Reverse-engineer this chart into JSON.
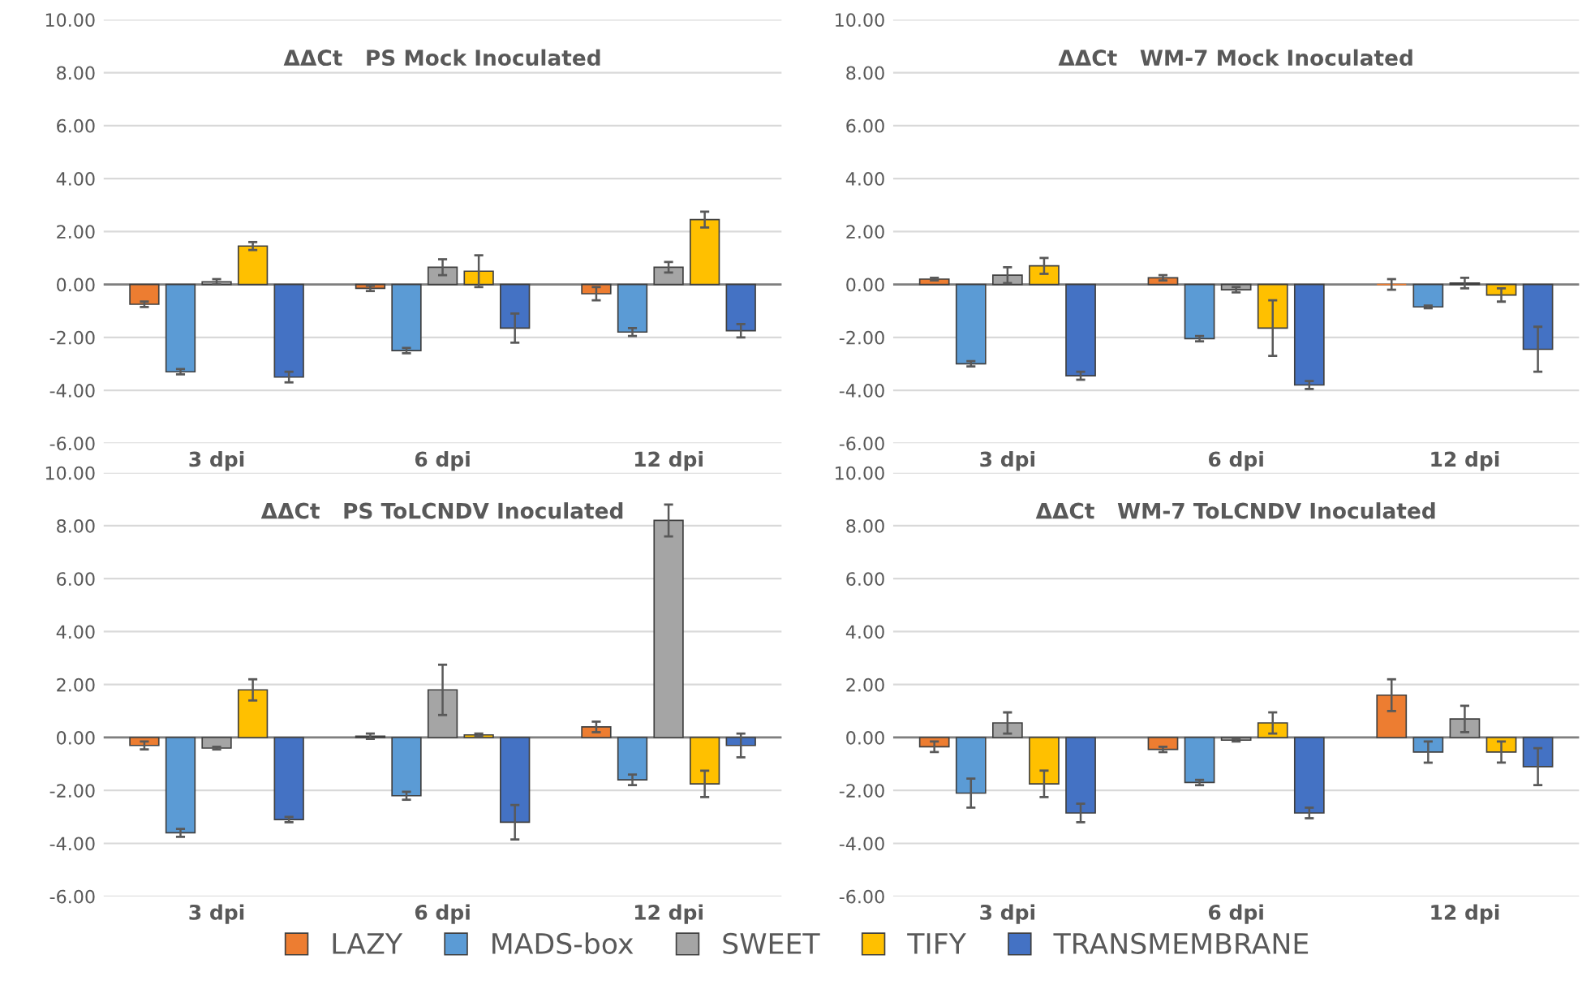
{
  "chart_data": [
    {
      "type": "bar",
      "title": "ΔΔCt   PS Mock Inoculated",
      "categories": [
        "3 dpi",
        "6 dpi",
        "12 dpi"
      ],
      "ylim": [
        -6,
        10
      ],
      "yticks": [
        {
          "value": -6,
          "label": "-6.00"
        },
        {
          "value": -4,
          "label": "-4.00"
        },
        {
          "value": -2,
          "label": "-2.00"
        },
        {
          "value": 0,
          "label": "0.00"
        },
        {
          "value": 2,
          "label": "2.00"
        },
        {
          "value": 4,
          "label": "4.00"
        },
        {
          "value": 6,
          "label": "6.00"
        },
        {
          "value": 8,
          "label": "8.00"
        },
        {
          "value": 10,
          "label": "10.00"
        }
      ],
      "grid": "y",
      "legend": "bottom",
      "series": [
        {
          "name": "LAZY",
          "color": "#ed7d31",
          "values": [
            -0.75,
            -0.15,
            -0.35
          ],
          "errors": [
            0.1,
            0.1,
            0.25
          ]
        },
        {
          "name": "MADS-box",
          "color": "#5b9bd5",
          "values": [
            -3.3,
            -2.5,
            -1.8
          ],
          "errors": [
            0.1,
            0.1,
            0.15
          ]
        },
        {
          "name": "SWEET",
          "color": "#a5a5a5",
          "values": [
            0.1,
            0.65,
            0.65
          ],
          "errors": [
            0.1,
            0.3,
            0.2
          ]
        },
        {
          "name": "TIFY",
          "color": "#ffc000",
          "values": [
            1.45,
            0.5,
            2.45
          ],
          "errors": [
            0.15,
            0.6,
            0.3
          ]
        },
        {
          "name": "TRANSMEMBRANE",
          "color": "#4472c4",
          "values": [
            -3.5,
            -1.65,
            -1.75
          ],
          "errors": [
            0.2,
            0.55,
            0.25
          ]
        }
      ]
    },
    {
      "type": "bar",
      "title": "ΔΔCt   WM-7 Mock Inoculated",
      "categories": [
        "3 dpi",
        "6 dpi",
        "12 dpi"
      ],
      "ylim": [
        -6,
        10
      ],
      "yticks": [
        {
          "value": -6,
          "label": "-6.00"
        },
        {
          "value": -4,
          "label": "-4.00"
        },
        {
          "value": -2,
          "label": "-2.00"
        },
        {
          "value": 0,
          "label": "0.00"
        },
        {
          "value": 2,
          "label": "2.00"
        },
        {
          "value": 4,
          "label": "4.00"
        },
        {
          "value": 6,
          "label": "6.00"
        },
        {
          "value": 8,
          "label": "8.00"
        },
        {
          "value": 10,
          "label": "10.00"
        }
      ],
      "grid": "y",
      "legend": false,
      "series": [
        {
          "color": "#ed7d31",
          "values": [
            0.2,
            0.25,
            0.0
          ],
          "errors": [
            0.05,
            0.1,
            0.2
          ]
        },
        {
          "color": "#5b9bd5",
          "values": [
            -3.0,
            -2.05,
            -0.85
          ],
          "errors": [
            0.1,
            0.1,
            0.05
          ]
        },
        {
          "color": "#a5a5a5",
          "values": [
            0.35,
            -0.2,
            0.05
          ],
          "errors": [
            0.3,
            0.1,
            0.2
          ]
        },
        {
          "color": "#ffc000",
          "values": [
            0.7,
            -1.65,
            -0.4
          ],
          "errors": [
            0.3,
            1.05,
            0.25
          ]
        },
        {
          "color": "#4472c4",
          "values": [
            -3.45,
            -3.8,
            -2.45
          ],
          "errors": [
            0.15,
            0.15,
            0.85
          ]
        }
      ]
    },
    {
      "type": "bar",
      "title": "ΔΔCt   PS ToLCNDV Inoculated",
      "categories": [
        "3 dpi",
        "6 dpi",
        "12 dpi"
      ],
      "ylim": [
        -6,
        10
      ],
      "yticks": [
        {
          "value": -6,
          "label": "-6.00"
        },
        {
          "value": -4,
          "label": "-4.00"
        },
        {
          "value": -2,
          "label": "-2.00"
        },
        {
          "value": 0,
          "label": "0.00"
        },
        {
          "value": 2,
          "label": "2.00"
        },
        {
          "value": 4,
          "label": "4.00"
        },
        {
          "value": 6,
          "label": "6.00"
        },
        {
          "value": 8,
          "label": "8.00"
        },
        {
          "value": 10,
          "label": "10.00"
        }
      ],
      "grid": "y",
      "legend": false,
      "series": [
        {
          "color": "#ed7d31",
          "values": [
            -0.3,
            0.05,
            0.4
          ],
          "errors": [
            0.15,
            0.1,
            0.2
          ]
        },
        {
          "color": "#5b9bd5",
          "values": [
            -3.6,
            -2.2,
            -1.6
          ],
          "errors": [
            0.15,
            0.15,
            0.2
          ]
        },
        {
          "color": "#a5a5a5",
          "values": [
            -0.4,
            1.8,
            8.2
          ],
          "errors": [
            0.05,
            0.95,
            0.6
          ]
        },
        {
          "color": "#ffc000",
          "values": [
            1.8,
            0.1,
            -1.75
          ],
          "errors": [
            0.4,
            0.05,
            0.5
          ]
        },
        {
          "color": "#4472c4",
          "values": [
            -3.1,
            -3.2,
            -0.3
          ],
          "errors": [
            0.1,
            0.65,
            0.45
          ]
        }
      ]
    },
    {
      "type": "bar",
      "title": "ΔΔCt   WM-7 ToLCNDV Inoculated",
      "categories": [
        "3 dpi",
        "6 dpi",
        "12 dpi"
      ],
      "ylim": [
        -6,
        10
      ],
      "yticks": [
        {
          "value": -6,
          "label": "-6.00"
        },
        {
          "value": -4,
          "label": "-4.00"
        },
        {
          "value": -2,
          "label": "-2.00"
        },
        {
          "value": 0,
          "label": "0.00"
        },
        {
          "value": 2,
          "label": "2.00"
        },
        {
          "value": 4,
          "label": "4.00"
        },
        {
          "value": 6,
          "label": "6.00"
        },
        {
          "value": 8,
          "label": "8.00"
        },
        {
          "value": 10,
          "label": "10.00"
        }
      ],
      "grid": "y",
      "legend": false,
      "series": [
        {
          "color": "#ed7d31",
          "values": [
            -0.35,
            -0.45,
            1.6
          ],
          "errors": [
            0.2,
            0.1,
            0.6
          ]
        },
        {
          "color": "#5b9bd5",
          "values": [
            -2.1,
            -1.7,
            -0.55
          ],
          "errors": [
            0.55,
            0.1,
            0.4
          ]
        },
        {
          "color": "#a5a5a5",
          "values": [
            0.55,
            -0.1,
            0.7
          ],
          "errors": [
            0.4,
            0.05,
            0.5
          ]
        },
        {
          "color": "#ffc000",
          "values": [
            -1.75,
            0.55,
            -0.55
          ],
          "errors": [
            0.5,
            0.4,
            0.4
          ]
        },
        {
          "color": "#4472c4",
          "values": [
            -2.85,
            -2.85,
            -1.1
          ],
          "errors": [
            0.35,
            0.2,
            0.7
          ]
        }
      ]
    }
  ]
}
